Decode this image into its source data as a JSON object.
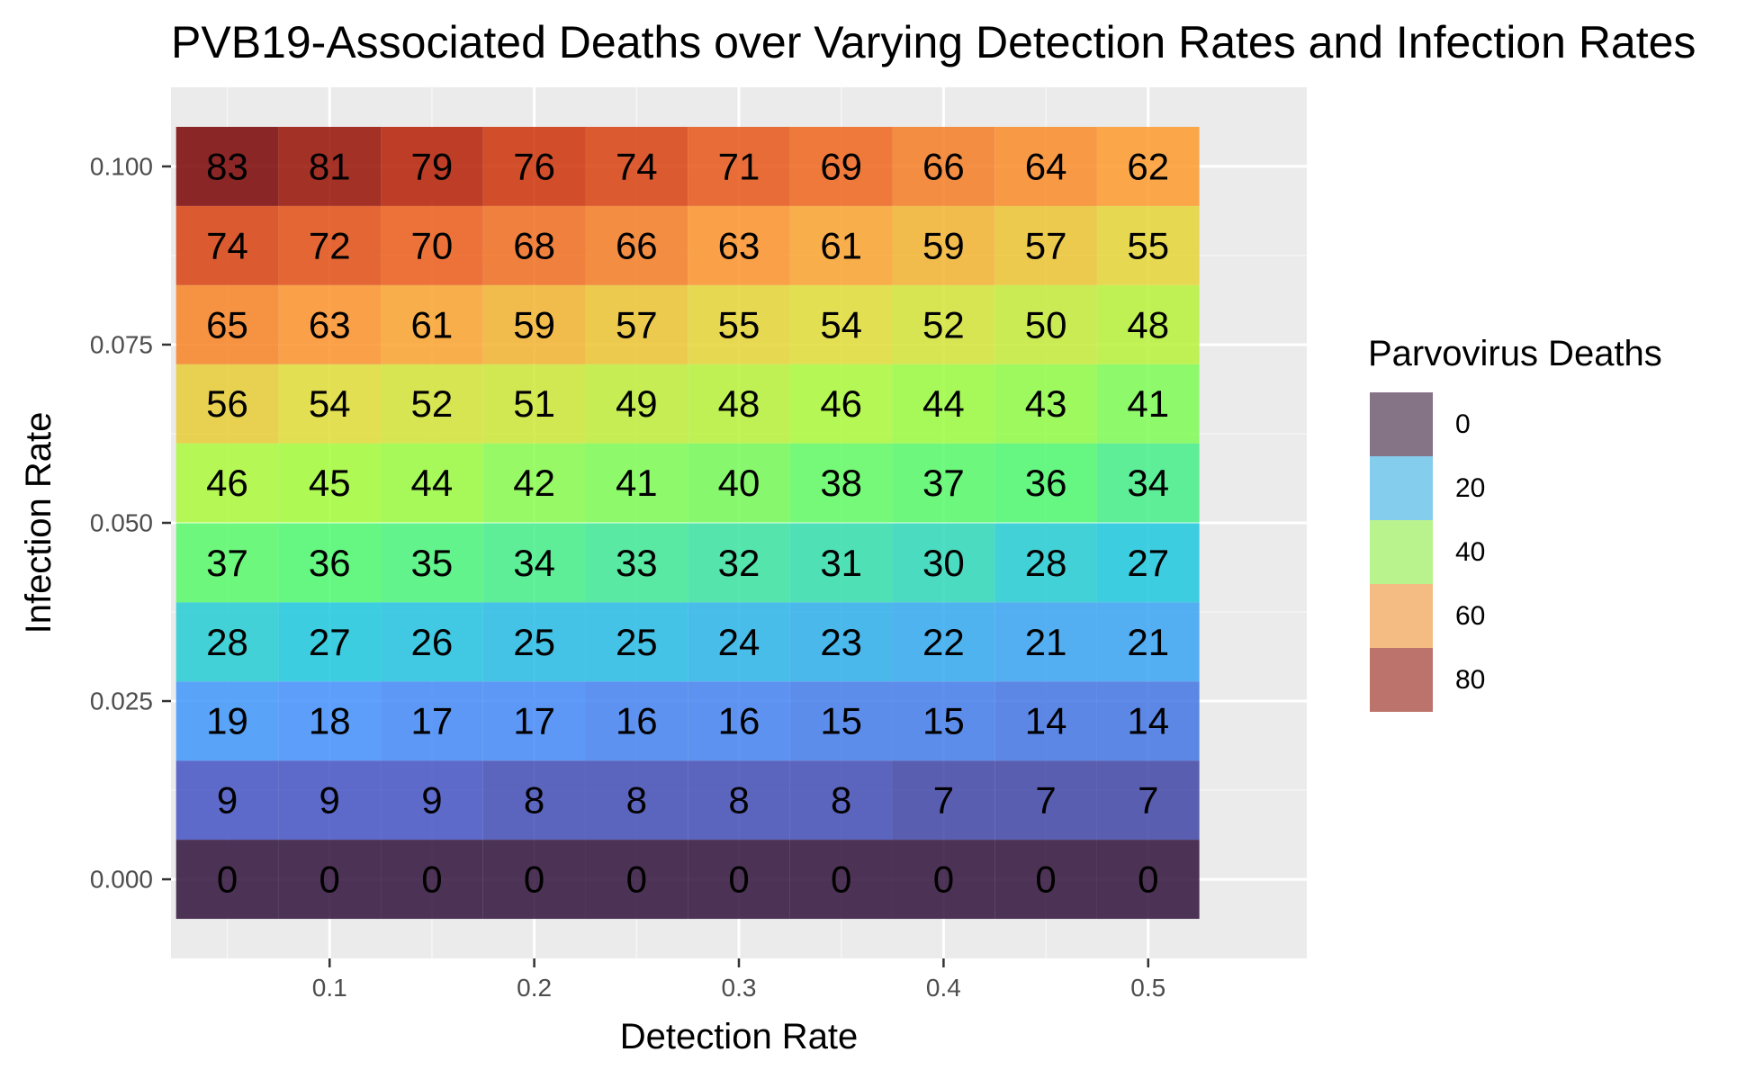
{
  "chart_data": {
    "type": "heatmap",
    "title": "PVB19-Associated Deaths over Varying Detection Rates and Infection Rates",
    "xlabel": "Detection Rate",
    "ylabel": "Infection Rate",
    "x": [
      0.05,
      0.1,
      0.15,
      0.2,
      0.25,
      0.3,
      0.35,
      0.4,
      0.45,
      0.5
    ],
    "y": [
      0.0,
      0.0111,
      0.0222,
      0.0333,
      0.0444,
      0.0556,
      0.0667,
      0.0778,
      0.0889,
      0.1
    ],
    "xlim": [
      0.0225,
      0.5775
    ],
    "ylim": [
      -0.0111,
      0.1111
    ],
    "x_ticks": [
      0.1,
      0.2,
      0.3,
      0.4,
      0.5
    ],
    "x_tick_labels": [
      "0.1",
      "0.2",
      "0.3",
      "0.4",
      "0.5"
    ],
    "y_ticks": [
      0.0,
      0.025,
      0.05,
      0.075,
      0.1
    ],
    "y_tick_labels": [
      "0.000",
      "0.025",
      "0.050",
      "0.075",
      "0.100"
    ],
    "values": [
      [
        0,
        0,
        0,
        0,
        0,
        0,
        0,
        0,
        0,
        0
      ],
      [
        9,
        9,
        9,
        8,
        8,
        8,
        8,
        7,
        7,
        7
      ],
      [
        19,
        18,
        17,
        17,
        16,
        16,
        15,
        15,
        14,
        14
      ],
      [
        28,
        27,
        26,
        25,
        25,
        24,
        23,
        22,
        21,
        21
      ],
      [
        37,
        36,
        35,
        34,
        33,
        32,
        31,
        30,
        28,
        27
      ],
      [
        46,
        45,
        44,
        42,
        41,
        40,
        38,
        37,
        36,
        34
      ],
      [
        56,
        54,
        52,
        51,
        49,
        48,
        46,
        44,
        43,
        41
      ],
      [
        65,
        63,
        61,
        59,
        57,
        55,
        54,
        52,
        50,
        48
      ],
      [
        74,
        72,
        70,
        68,
        66,
        63,
        61,
        59,
        57,
        55
      ],
      [
        83,
        81,
        79,
        76,
        74,
        71,
        69,
        66,
        64,
        62
      ]
    ],
    "grid": true,
    "legend": {
      "title": "Parvovirus Deaths",
      "position": "right",
      "entries": [
        {
          "label": "0",
          "color": "#857386"
        },
        {
          "label": "20",
          "color": "#85CDEC"
        },
        {
          "label": "40",
          "color": "#B9F38D"
        },
        {
          "label": "60",
          "color": "#F4BC82"
        },
        {
          "label": "80",
          "color": "#BC736B"
        }
      ]
    },
    "colors": {
      "panel_background": "#EBEBEB",
      "grid_major": "#FFFFFF",
      "grid_minor": "#F5F5F5",
      "cell_opacity": 0.85,
      "scale_stops": [
        {
          "value": 0,
          "color": "#30123B"
        },
        {
          "value": 9,
          "color": "#4454C4"
        },
        {
          "value": 18,
          "color": "#4490FE"
        },
        {
          "value": 27,
          "color": "#1FC8DE"
        },
        {
          "value": 36,
          "color": "#4FF970"
        },
        {
          "value": 45,
          "color": "#A4FC3B"
        },
        {
          "value": 54,
          "color": "#E1DD37"
        },
        {
          "value": 62,
          "color": "#FE9B2D"
        },
        {
          "value": 70,
          "color": "#EC5D1A"
        },
        {
          "value": 78,
          "color": "#C42503"
        },
        {
          "value": 83,
          "color": "#7A0403"
        }
      ]
    }
  }
}
